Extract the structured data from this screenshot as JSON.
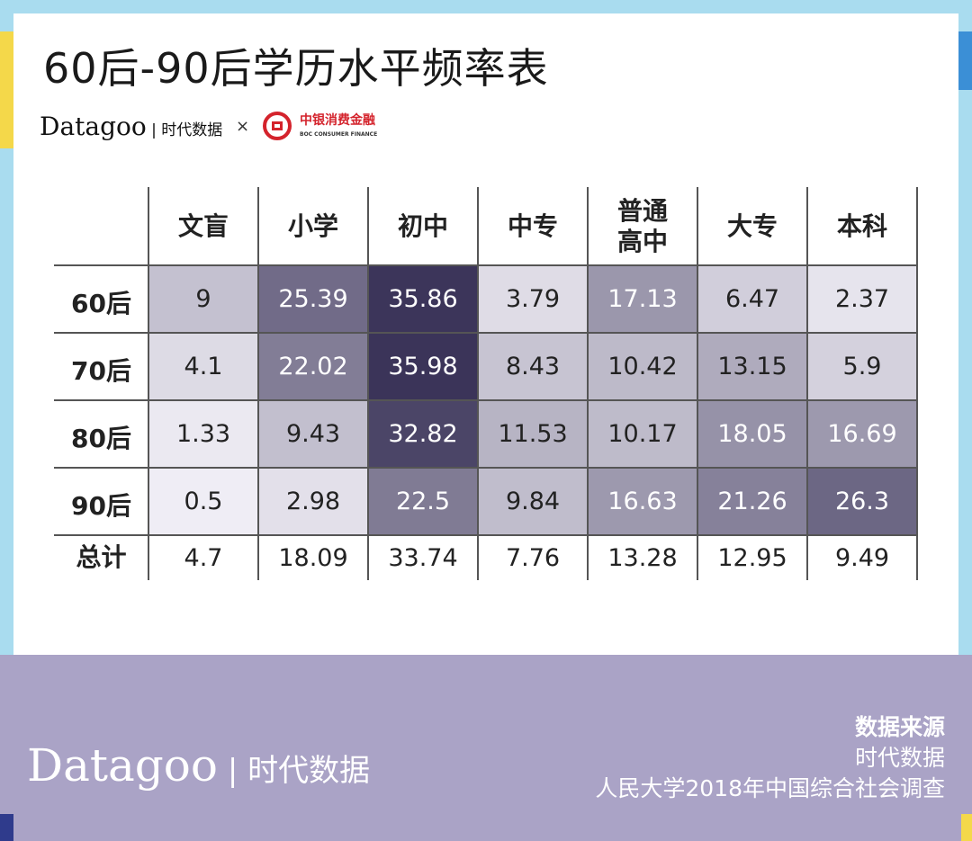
{
  "title": "60后-90后学历水平频率表",
  "brand": {
    "name": "Datagoo",
    "cn": "时代数据",
    "times": "×",
    "partner_cn": "中银消费金融",
    "partner_en": "BOC CONSUMER FINANCE"
  },
  "colors": {
    "background": "#a9dcef",
    "footer": "#aaa3c6",
    "low": "#f2f0f7",
    "high": "#3b3459",
    "accent_yellow": "#f4d84a",
    "accent_navy": "#2f3b8c"
  },
  "chart_data": {
    "type": "heatmap",
    "title": "60后-90后学历水平频率表",
    "columns": [
      "文盲",
      "小学",
      "初中",
      "中专",
      "普通\n高中",
      "大专",
      "本科"
    ],
    "rows": [
      "60后",
      "70后",
      "80后",
      "90后"
    ],
    "values": [
      [
        9,
        25.39,
        35.86,
        3.79,
        17.13,
        6.47,
        2.37
      ],
      [
        4.1,
        22.02,
        35.98,
        8.43,
        10.42,
        13.15,
        5.9
      ],
      [
        1.33,
        9.43,
        32.82,
        11.53,
        10.17,
        18.05,
        16.69
      ],
      [
        0.5,
        2.98,
        22.5,
        9.84,
        16.63,
        21.26,
        26.3
      ]
    ],
    "total_label": "总计",
    "totals": [
      4.7,
      18.09,
      33.74,
      7.76,
      13.28,
      12.95,
      9.49
    ]
  },
  "source": {
    "heading": "数据来源",
    "lines": [
      "时代数据",
      "人民大学2018年中国综合社会调查"
    ]
  }
}
